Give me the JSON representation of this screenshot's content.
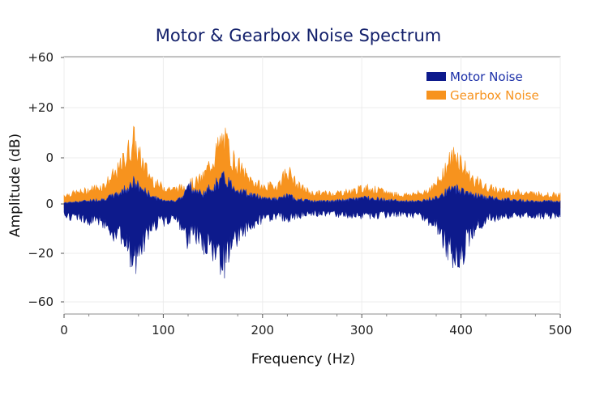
{
  "chart_data": {
    "type": "area",
    "title": "Motor & Gearbox Noise Spectrum",
    "xlabel": "Frequency (Hz)",
    "ylabel": "Amplitude (dB)",
    "xlim": [
      0,
      500
    ],
    "x_ticks": [
      0,
      100,
      200,
      300,
      400,
      500
    ],
    "x_tick_labels": [
      "0",
      "100",
      "200",
      "300",
      "400",
      "500"
    ],
    "y_tick_labels": [
      "+60",
      "+20",
      "0",
      "0",
      "−20",
      "−60"
    ],
    "grid": true,
    "legend_position": "top-right",
    "series": [
      {
        "name": "Motor Noise",
        "color": "#0d1a8c",
        "x": [
          0,
          20,
          40,
          55,
          65,
          70,
          75,
          85,
          95,
          110,
          120,
          125,
          130,
          140,
          150,
          160,
          165,
          170,
          185,
          200,
          215,
          225,
          235,
          250,
          270,
          290,
          305,
          320,
          340,
          360,
          375,
          385,
          395,
          400,
          410,
          425,
          445,
          470,
          500
        ],
        "upper": [
          1,
          2,
          3,
          6,
          10,
          12,
          10,
          6,
          3,
          2,
          4,
          15,
          8,
          6,
          10,
          14,
          13,
          10,
          6,
          4,
          3,
          5,
          3,
          2,
          2,
          3,
          4,
          3,
          2,
          2,
          4,
          7,
          9,
          8,
          6,
          4,
          3,
          2,
          2
        ],
        "lower": [
          -6,
          -8,
          -10,
          -18,
          -26,
          -32,
          -26,
          -16,
          -10,
          -8,
          -12,
          -20,
          -16,
          -20,
          -28,
          -32,
          -28,
          -20,
          -12,
          -8,
          -6,
          -8,
          -6,
          -5,
          -5,
          -6,
          -6,
          -6,
          -5,
          -6,
          -12,
          -22,
          -30,
          -28,
          -16,
          -8,
          -6,
          -6,
          -6
        ]
      },
      {
        "name": "Gearbox Noise",
        "color": "#f7931e",
        "x": [
          0,
          20,
          40,
          55,
          65,
          70,
          75,
          85,
          95,
          110,
          120,
          125,
          130,
          140,
          150,
          160,
          165,
          170,
          185,
          200,
          215,
          225,
          235,
          250,
          270,
          290,
          305,
          320,
          340,
          360,
          375,
          385,
          395,
          400,
          410,
          425,
          445,
          470,
          500
        ],
        "upper": [
          5,
          7,
          10,
          18,
          28,
          34,
          26,
          16,
          10,
          8,
          9,
          12,
          11,
          14,
          24,
          34,
          30,
          24,
          14,
          9,
          10,
          18,
          10,
          6,
          6,
          7,
          9,
          7,
          5,
          6,
          10,
          20,
          27,
          22,
          14,
          9,
          7,
          6,
          5
        ]
      }
    ]
  }
}
